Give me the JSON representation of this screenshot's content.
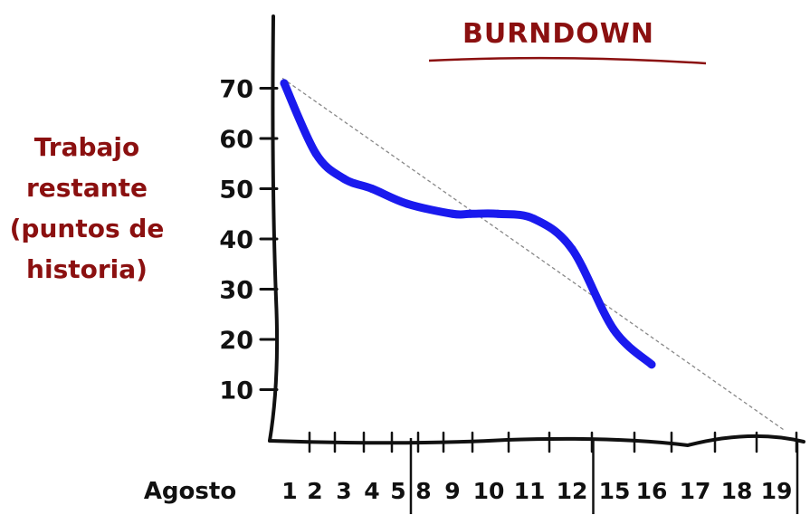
{
  "chart_data": {
    "type": "line",
    "title": "BURNDOWN",
    "ylabel": [
      "Trabajo",
      "restante",
      "(puntos de",
      "historia)"
    ],
    "xlabel": "Agosto",
    "categories": [
      "1",
      "2",
      "3",
      "4",
      "5",
      "8",
      "9",
      "10",
      "11",
      "12",
      "15",
      "16",
      "17",
      "18",
      "19"
    ],
    "sprint_separators_after": [
      "5",
      "12"
    ],
    "y_ticks": [
      10,
      20,
      30,
      40,
      50,
      60,
      70
    ],
    "ylim": [
      0,
      75
    ],
    "series": [
      {
        "values": [
          71,
          57,
          52,
          50,
          47,
          45,
          45,
          45,
          44,
          38,
          22,
          15,
          null,
          null,
          null
        ],
        "color": "#1a1aee"
      }
    ],
    "ideal_line": {
      "from": [
        0,
        72
      ],
      "to": [
        19,
        2
      ],
      "color": "#888888",
      "style": "dashed"
    },
    "colors": {
      "title": "#8b1010",
      "ylabel": "#8b1010",
      "axis": "#111111",
      "ideal": "#888888"
    },
    "grid": false,
    "legend": "none"
  }
}
